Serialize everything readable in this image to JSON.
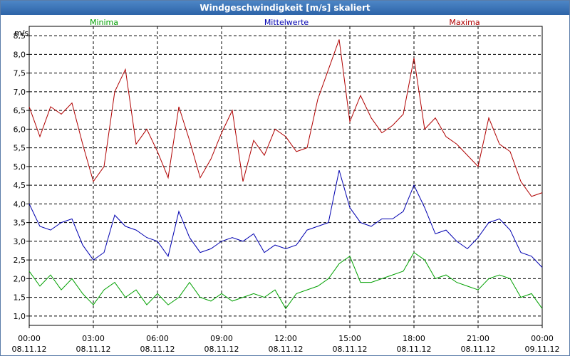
{
  "chart_data": {
    "type": "line",
    "title": "Windgeschwindigkeit [m/s] skaliert",
    "ylabel": "m/s",
    "xlabel": "",
    "ylim": [
      0.75,
      8.75
    ],
    "xlim": [
      0,
      24
    ],
    "grid": true,
    "legend_position": "top",
    "y_ticks": [
      "1,0",
      "1,5",
      "2,0",
      "2,5",
      "3,0",
      "3,5",
      "4,0",
      "4,5",
      "5,0",
      "5,5",
      "6,0",
      "6,5",
      "7,0",
      "7,5",
      "8,0",
      "8,5"
    ],
    "x_ticks": [
      {
        "time": "00:00",
        "date": "08.11.12"
      },
      {
        "time": "03:00",
        "date": "08.11.12"
      },
      {
        "time": "06:00",
        "date": "08.11.12"
      },
      {
        "time": "09:00",
        "date": "08.11.12"
      },
      {
        "time": "12:00",
        "date": "08.11.12"
      },
      {
        "time": "15:00",
        "date": "08.11.12"
      },
      {
        "time": "18:00",
        "date": "08.11.12"
      },
      {
        "time": "21:00",
        "date": "08.11.12"
      },
      {
        "time": "00:00",
        "date": "09.11.12"
      }
    ],
    "series": [
      {
        "name": "Minima",
        "color": "#00a000",
        "x": [
          0,
          0.5,
          1,
          1.5,
          2,
          2.5,
          3,
          3.5,
          4,
          4.5,
          5,
          5.5,
          6,
          6.5,
          7,
          7.5,
          8,
          8.5,
          9,
          9.5,
          10,
          10.5,
          11,
          11.5,
          12,
          12.5,
          13,
          13.5,
          14,
          14.5,
          15,
          15.5,
          16,
          16.5,
          17,
          17.5,
          18,
          18.5,
          19,
          19.5,
          20,
          20.5,
          21,
          21.5,
          22,
          22.5,
          23,
          23.5,
          24
        ],
        "values": [
          2.2,
          1.8,
          2.1,
          1.7,
          2.0,
          1.6,
          1.3,
          1.7,
          1.9,
          1.5,
          1.7,
          1.3,
          1.6,
          1.3,
          1.5,
          1.9,
          1.5,
          1.4,
          1.6,
          1.4,
          1.5,
          1.6,
          1.5,
          1.7,
          1.2,
          1.6,
          1.7,
          1.8,
          2.0,
          2.4,
          2.6,
          1.9,
          1.9,
          2.0,
          2.1,
          2.2,
          2.7,
          2.5,
          2.0,
          2.1,
          1.9,
          1.8,
          1.7,
          2.0,
          2.1,
          2.0,
          1.5,
          1.6,
          1.2
        ]
      },
      {
        "name": "Mittelwerte",
        "color": "#0000b0",
        "x": [
          0,
          0.5,
          1,
          1.5,
          2,
          2.5,
          3,
          3.5,
          4,
          4.5,
          5,
          5.5,
          6,
          6.5,
          7,
          7.5,
          8,
          8.5,
          9,
          9.5,
          10,
          10.5,
          11,
          11.5,
          12,
          12.5,
          13,
          13.5,
          14,
          14.5,
          15,
          15.5,
          16,
          16.5,
          17,
          17.5,
          18,
          18.5,
          19,
          19.5,
          20,
          20.5,
          21,
          21.5,
          22,
          22.5,
          23,
          23.5,
          24
        ],
        "values": [
          4.0,
          3.4,
          3.3,
          3.5,
          3.6,
          2.9,
          2.5,
          2.7,
          3.7,
          3.4,
          3.3,
          3.1,
          3.0,
          2.6,
          3.8,
          3.1,
          2.7,
          2.8,
          3.0,
          3.1,
          3.0,
          3.2,
          2.7,
          2.9,
          2.8,
          2.9,
          3.3,
          3.4,
          3.5,
          4.9,
          3.9,
          3.5,
          3.4,
          3.6,
          3.6,
          3.8,
          4.5,
          3.9,
          3.2,
          3.3,
          3.0,
          2.8,
          3.1,
          3.5,
          3.6,
          3.3,
          2.7,
          2.6,
          2.3
        ]
      },
      {
        "name": "Maxima",
        "color": "#b00000",
        "x": [
          0,
          0.5,
          1,
          1.5,
          2,
          2.5,
          3,
          3.5,
          4,
          4.5,
          5,
          5.5,
          6,
          6.5,
          7,
          7.5,
          8,
          8.5,
          9,
          9.5,
          10,
          10.5,
          11,
          11.5,
          12,
          12.5,
          13,
          13.5,
          14,
          14.5,
          15,
          15.5,
          16,
          16.5,
          17,
          17.5,
          18,
          18.5,
          19,
          19.5,
          20,
          20.5,
          21,
          21.5,
          22,
          22.5,
          23,
          23.5,
          24
        ],
        "values": [
          6.6,
          5.8,
          6.6,
          6.4,
          6.7,
          5.6,
          4.6,
          5.0,
          7.0,
          7.6,
          5.6,
          6.0,
          5.4,
          4.7,
          6.6,
          5.7,
          4.7,
          5.2,
          5.9,
          6.5,
          4.6,
          5.7,
          5.3,
          6.0,
          5.8,
          5.4,
          5.5,
          6.8,
          7.6,
          8.4,
          6.2,
          6.9,
          6.3,
          5.9,
          6.1,
          6.4,
          7.9,
          6.0,
          6.3,
          5.8,
          5.6,
          5.3,
          5.0,
          6.3,
          5.6,
          5.4,
          4.6,
          4.2,
          4.3
        ]
      }
    ]
  }
}
